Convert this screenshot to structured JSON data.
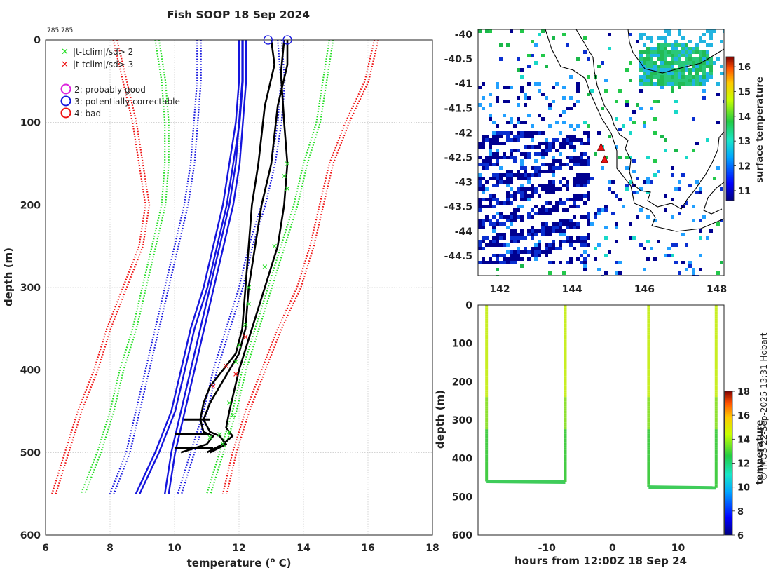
{
  "figure": {
    "title": "Fish SOOP 18 Sep 2024",
    "id_label": "785 785",
    "credit": "© IMOS 22-Sep-2025 13:31 Hobart"
  },
  "chart_data": [
    {
      "type": "line",
      "name": "profile",
      "xlabel": "temperature (° C)",
      "xlabel_main": "temperature (",
      "xlabel_sup": "o",
      "xlabel_end": " C)",
      "ylabel": "depth (m)",
      "xlim": [
        6,
        18
      ],
      "ylim": [
        0,
        600
      ],
      "xticks": [
        6,
        8,
        10,
        12,
        14,
        16,
        18
      ],
      "yticks": [
        0,
        100,
        200,
        300,
        400,
        500,
        600
      ],
      "grid": true,
      "legend": [
        {
          "marker": "x",
          "color": "#22dd22",
          "label": "|t-tclim|/sd> 2"
        },
        {
          "marker": "x",
          "color": "#ee1111",
          "label": "|t-tclim|/sd> 3"
        },
        {
          "marker": "o",
          "color": "#dd22dd",
          "label": "2: probably good"
        },
        {
          "marker": "o",
          "color": "#1111ee",
          "label": "3: potentially correctable"
        },
        {
          "marker": "o",
          "color": "#ee1111",
          "label": "4: bad"
        }
      ],
      "series": [
        {
          "name": "clim mean (solid blue)",
          "color": "#1515dd",
          "style": "solid",
          "depth": [
            0,
            50,
            100,
            150,
            200,
            250,
            300,
            350,
            400,
            450,
            500,
            550
          ],
          "left": [
            12.0,
            12.0,
            11.9,
            11.7,
            11.5,
            11.2,
            10.9,
            10.5,
            10.2,
            9.9,
            9.4,
            8.8
          ],
          "right": [
            12.1,
            12.1,
            12.0,
            11.9,
            11.7,
            11.4,
            11.1,
            10.8,
            10.5,
            10.2,
            9.9,
            9.7
          ]
        },
        {
          "name": "clim 1sd (dotted blue)",
          "color": "#1515dd",
          "style": "dotted",
          "depth": [
            0,
            50,
            100,
            150,
            200,
            250,
            300,
            350,
            400,
            450,
            500,
            550
          ],
          "left": [
            10.7,
            10.7,
            10.6,
            10.5,
            10.3,
            10.0,
            9.7,
            9.4,
            9.1,
            8.8,
            8.5,
            8.0
          ],
          "right": [
            13.2,
            13.3,
            13.2,
            13.0,
            12.7,
            12.3,
            12.0,
            11.6,
            11.2,
            10.9,
            10.5,
            10.1
          ]
        },
        {
          "name": "clim 2sd (dotted green)",
          "color": "#22dd22",
          "style": "dotted",
          "depth": [
            0,
            50,
            100,
            150,
            200,
            250,
            300,
            350,
            400,
            450,
            500,
            550
          ],
          "left": [
            9.4,
            9.6,
            9.7,
            9.7,
            9.6,
            9.3,
            9.0,
            8.7,
            8.3,
            8.0,
            7.6,
            7.1
          ],
          "right": [
            14.8,
            14.6,
            14.4,
            14.0,
            13.7,
            13.3,
            12.9,
            12.5,
            12.1,
            11.8,
            11.4,
            11.0
          ]
        },
        {
          "name": "clim 3sd (dotted red)",
          "color": "#ee1111",
          "style": "dotted",
          "depth": [
            0,
            50,
            100,
            150,
            200,
            250,
            300,
            350,
            400,
            450,
            500,
            550
          ],
          "left": [
            8.1,
            8.4,
            8.7,
            8.9,
            9.1,
            8.9,
            8.4,
            7.9,
            7.5,
            7.0,
            6.6,
            6.2
          ],
          "right": [
            16.2,
            15.9,
            15.3,
            14.8,
            14.5,
            14.2,
            13.8,
            13.2,
            12.7,
            12.2,
            11.8,
            11.5
          ]
        },
        {
          "name": "XBT profile 1",
          "color": "#000000",
          "style": "solid",
          "depth": [
            0,
            30,
            80,
            150,
            200,
            250,
            300,
            350,
            380,
            400,
            420,
            440,
            460,
            475,
            480,
            490,
            500
          ],
          "temp": [
            13.0,
            13.1,
            12.8,
            12.6,
            12.4,
            12.3,
            12.2,
            12.1,
            11.9,
            11.5,
            11.1,
            10.9,
            10.8,
            10.9,
            11.2,
            11.0,
            10.2
          ]
        },
        {
          "name": "XBT profile 2",
          "color": "#000000",
          "style": "solid",
          "depth": [
            0,
            30,
            80,
            150,
            200,
            250,
            300,
            350,
            380,
            400,
            420,
            440,
            460,
            475,
            480,
            490,
            500
          ],
          "temp": [
            13.5,
            13.5,
            13.2,
            13.0,
            12.7,
            12.5,
            12.3,
            12.2,
            12.0,
            11.7,
            11.4,
            11.1,
            10.9,
            11.1,
            11.4,
            11.6,
            11.1
          ]
        },
        {
          "name": "XBT profile 3",
          "color": "#000000",
          "style": "solid",
          "depth": [
            0,
            40,
            100,
            150,
            200,
            250,
            300,
            350,
            400,
            450,
            470,
            480,
            490,
            500
          ],
          "temp": [
            13.4,
            13.3,
            13.4,
            13.5,
            13.4,
            13.2,
            12.8,
            12.4,
            12.0,
            11.7,
            11.6,
            11.8,
            11.5,
            11.0
          ]
        }
      ],
      "flags_2sd": [
        {
          "t": 13.5,
          "d": 150
        },
        {
          "t": 13.4,
          "d": 165
        },
        {
          "t": 13.5,
          "d": 180
        },
        {
          "t": 13.1,
          "d": 250
        },
        {
          "t": 12.8,
          "d": 275
        },
        {
          "t": 12.3,
          "d": 300
        },
        {
          "t": 12.3,
          "d": 320
        },
        {
          "t": 12.2,
          "d": 345
        },
        {
          "t": 12.0,
          "d": 370
        },
        {
          "t": 11.9,
          "d": 390
        },
        {
          "t": 11.7,
          "d": 440
        },
        {
          "t": 11.8,
          "d": 455
        },
        {
          "t": 11.7,
          "d": 475
        },
        {
          "t": 11.4,
          "d": 478
        },
        {
          "t": 11.1,
          "d": 482
        },
        {
          "t": 11.5,
          "d": 490
        }
      ],
      "flags_3sd": [
        {
          "t": 11.2,
          "d": 420
        },
        {
          "t": 11.6,
          "d": 395
        },
        {
          "t": 12.2,
          "d": 360
        },
        {
          "t": 11.9,
          "d": 405
        }
      ],
      "surface_markers": [
        {
          "t": 12.9,
          "d": 0,
          "color": "#1515dd"
        },
        {
          "t": 13.5,
          "d": 0,
          "color": "#1515dd"
        }
      ],
      "spike_lines": [
        {
          "t0": 10.0,
          "t1": 11.1,
          "d": 478
        },
        {
          "t0": 10.3,
          "t1": 11.1,
          "d": 460
        },
        {
          "t0": 10.0,
          "t1": 11.2,
          "d": 495
        }
      ]
    },
    {
      "type": "heatmap",
      "name": "surface temperature map",
      "xlim": [
        141.4,
        148.2
      ],
      "ylim": [
        -44.9,
        -39.9
      ],
      "xticks": [
        142,
        144,
        146,
        148
      ],
      "yticks": [
        -40,
        -40.5,
        -41,
        -41.5,
        -42,
        -42.5,
        -43,
        -43.5,
        -44,
        -44.5
      ],
      "colorbar": {
        "label": "surface temperature",
        "min": 10.6,
        "max": 16.4,
        "ticks": [
          11,
          12,
          13,
          14,
          15,
          16
        ]
      },
      "track": [
        {
          "lon": 144.8,
          "lat": -42.3
        },
        {
          "lon": 144.9,
          "lat": -42.55
        }
      ]
    },
    {
      "type": "scatter",
      "name": "depth vs time",
      "xlabel": "hours from 12:00Z 18 Sep 24",
      "ylabel": "depth (m)",
      "xlim": [
        -20.5,
        17
      ],
      "ylim": [
        0,
        600
      ],
      "xticks": [
        -10,
        0,
        10
      ],
      "yticks": [
        0,
        100,
        200,
        300,
        400,
        500,
        600
      ],
      "colorbar": {
        "label": "temperature",
        "min": 6,
        "max": 18,
        "ticks": [
          6,
          8,
          10,
          12,
          14,
          16,
          18
        ]
      },
      "segments": [
        {
          "x": [
            -19.2,
            -19.2,
            -7.2,
            -7.2
          ],
          "y": [
            0,
            460,
            462,
            0
          ]
        },
        {
          "x": [
            5.5,
            5.5,
            15.8,
            15.8
          ],
          "y": [
            0,
            475,
            477,
            0
          ]
        }
      ]
    }
  ]
}
